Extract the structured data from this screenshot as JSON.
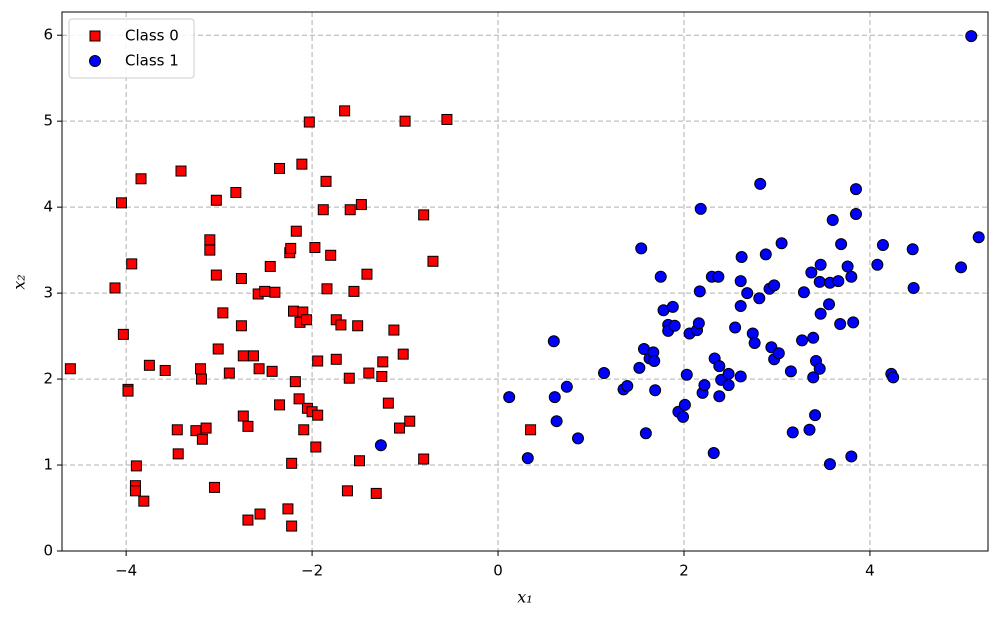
{
  "chart_data": {
    "type": "scatter",
    "xlabel": "x₁",
    "ylabel": "x₂",
    "xlim": [
      -4.69,
      5.27
    ],
    "ylim": [
      0,
      6.27
    ],
    "xticks": [
      {
        "value": -4,
        "label": "−4"
      },
      {
        "value": -2,
        "label": "−2"
      },
      0,
      2,
      4
    ],
    "yticks": [
      0,
      1,
      2,
      3,
      4,
      5,
      6
    ],
    "grid": true,
    "legend": "upper left",
    "edgecolor": "#000000",
    "series": [
      {
        "name": "Class 0",
        "color": "#ff0000",
        "marker": "square",
        "x": [
          -4.6,
          -4.12,
          -4.05,
          -4.03,
          -3.98,
          -3.98,
          -3.94,
          -3.89,
          -3.9,
          -3.9,
          -3.84,
          -3.81,
          -3.75,
          -3.58,
          -3.45,
          -3.44,
          -3.41,
          -3.25,
          -3.2,
          -3.19,
          -3.18,
          -3.14,
          -3.1,
          -3.1,
          -3.05,
          -3.03,
          -3.03,
          -3.01,
          -2.96,
          -2.89,
          -2.82,
          -2.76,
          -2.76,
          -2.74,
          -2.74,
          -2.69,
          -2.69,
          -2.63,
          -2.58,
          -2.57,
          -2.56,
          -2.51,
          -2.45,
          -2.43,
          -2.4,
          -2.35,
          -2.35,
          -2.26,
          -2.24,
          -2.23,
          -2.22,
          -2.22,
          -2.2,
          -2.18,
          -2.17,
          -2.14,
          -2.13,
          -2.11,
          -2.1,
          -2.09,
          -2.06,
          -2.05,
          -2.03,
          -2.0,
          -1.97,
          -1.96,
          -1.94,
          -1.94,
          -1.88,
          -1.85,
          -1.84,
          -1.8,
          -1.74,
          -1.74,
          -1.69,
          -1.65,
          -1.62,
          -1.6,
          -1.59,
          -1.55,
          -1.51,
          -1.49,
          -1.47,
          -1.41,
          -1.39,
          -1.31,
          -1.25,
          -1.24,
          -1.18,
          -1.12,
          -1.06,
          -1.02,
          -1.0,
          -0.95,
          -0.8,
          -0.8,
          -0.7,
          -0.55,
          0.35
        ],
        "y": [
          2.12,
          3.06,
          4.05,
          2.52,
          1.88,
          1.86,
          3.34,
          0.99,
          0.76,
          0.7,
          4.33,
          0.58,
          2.16,
          2.1,
          1.41,
          1.13,
          4.42,
          1.4,
          2.12,
          2.0,
          1.3,
          1.43,
          3.62,
          3.5,
          0.74,
          4.08,
          3.21,
          2.35,
          2.77,
          2.07,
          4.17,
          3.17,
          2.62,
          2.27,
          1.57,
          1.45,
          0.36,
          2.27,
          2.99,
          2.12,
          0.43,
          3.02,
          3.31,
          2.09,
          3.01,
          4.45,
          1.7,
          0.49,
          3.47,
          3.52,
          1.02,
          0.29,
          2.79,
          1.97,
          3.72,
          1.77,
          2.66,
          4.5,
          2.78,
          1.41,
          2.69,
          1.66,
          4.99,
          1.62,
          3.53,
          1.21,
          2.21,
          1.58,
          3.97,
          4.3,
          3.05,
          3.44,
          2.69,
          2.23,
          2.63,
          5.12,
          0.7,
          2.01,
          3.97,
          3.02,
          2.62,
          1.05,
          4.03,
          3.22,
          2.07,
          0.67,
          2.03,
          2.2,
          1.72,
          2.57,
          1.43,
          2.29,
          5.0,
          1.51,
          3.91,
          1.07,
          3.37,
          5.02,
          1.41
        ]
      },
      {
        "name": "Class 1",
        "color": "#0000ff",
        "marker": "circle",
        "x": [
          0.12,
          0.32,
          0.6,
          0.61,
          0.63,
          0.74,
          0.86,
          -1.26,
          1.14,
          1.35,
          1.39,
          1.52,
          1.54,
          1.57,
          1.59,
          1.63,
          1.67,
          1.68,
          1.69,
          1.75,
          1.78,
          1.83,
          1.83,
          1.88,
          1.9,
          1.94,
          1.99,
          2.01,
          2.03,
          2.06,
          2.14,
          2.16,
          2.17,
          2.18,
          2.2,
          2.22,
          2.3,
          2.32,
          2.33,
          2.37,
          2.38,
          2.38,
          2.4,
          2.48,
          2.48,
          2.55,
          2.61,
          2.61,
          2.61,
          2.62,
          2.68,
          2.74,
          2.76,
          2.81,
          2.82,
          2.88,
          2.92,
          2.94,
          2.97,
          2.97,
          3.02,
          3.05,
          3.15,
          3.17,
          3.27,
          3.29,
          3.35,
          3.37,
          3.39,
          3.39,
          3.41,
          3.42,
          3.46,
          3.46,
          3.47,
          3.47,
          3.56,
          3.57,
          3.57,
          3.6,
          3.66,
          3.68,
          3.69,
          3.76,
          3.8,
          3.8,
          3.82,
          3.85,
          3.85,
          4.08,
          4.14,
          4.23,
          4.25,
          4.46,
          4.47,
          4.98,
          5.09,
          5.17
        ],
        "y": [
          1.79,
          1.08,
          2.44,
          1.79,
          1.51,
          1.91,
          1.31,
          1.23,
          2.07,
          1.88,
          1.92,
          2.13,
          3.52,
          2.35,
          1.37,
          2.24,
          2.31,
          2.21,
          1.87,
          3.19,
          2.8,
          2.63,
          2.56,
          2.84,
          2.62,
          1.62,
          1.56,
          1.7,
          2.05,
          2.53,
          2.57,
          2.65,
          3.02,
          3.98,
          1.84,
          1.93,
          3.19,
          1.14,
          2.24,
          3.19,
          2.15,
          1.8,
          1.99,
          2.06,
          1.93,
          2.6,
          2.03,
          3.14,
          2.85,
          3.42,
          3.0,
          2.53,
          2.42,
          2.94,
          4.27,
          3.45,
          3.05,
          2.37,
          3.09,
          2.23,
          2.3,
          3.58,
          2.09,
          1.38,
          2.45,
          3.01,
          1.41,
          3.24,
          2.48,
          2.02,
          1.58,
          2.21,
          2.12,
          3.13,
          3.33,
          2.76,
          2.87,
          3.12,
          1.01,
          3.85,
          3.14,
          2.64,
          3.57,
          3.31,
          1.1,
          3.19,
          2.66,
          3.92,
          4.21,
          3.33,
          3.56,
          2.06,
          2.02,
          3.51,
          3.06,
          3.3,
          5.99,
          3.65
        ]
      }
    ]
  }
}
